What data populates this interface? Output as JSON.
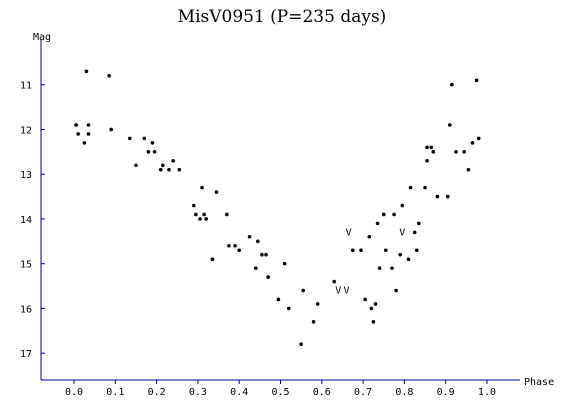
{
  "chart_data": {
    "type": "scatter",
    "title": "MisV0951 (P=235 days)",
    "xlabel": "Phase",
    "ylabel": "Mag",
    "xlim": [
      -0.08,
      1.08
    ],
    "ylim": [
      10.0,
      17.6
    ],
    "y_inverted": true,
    "grid": false,
    "axis_color": "#00008b",
    "point_color": "#000000",
    "x_ticks": [
      "0.0",
      "0.1",
      "0.2",
      "0.3",
      "0.4",
      "0.5",
      "0.6",
      "0.7",
      "0.8",
      "0.9",
      "1.0"
    ],
    "y_ticks": [
      "11",
      "12",
      "13",
      "14",
      "15",
      "16",
      "17"
    ],
    "points": [
      {
        "x": 0.005,
        "y": 11.9
      },
      {
        "x": 0.01,
        "y": 12.1
      },
      {
        "x": 0.025,
        "y": 12.3
      },
      {
        "x": 0.03,
        "y": 10.7
      },
      {
        "x": 0.035,
        "y": 12.1
      },
      {
        "x": 0.035,
        "y": 11.9
      },
      {
        "x": 0.085,
        "y": 10.8
      },
      {
        "x": 0.09,
        "y": 12.0
      },
      {
        "x": 0.135,
        "y": 12.2
      },
      {
        "x": 0.15,
        "y": 12.8
      },
      {
        "x": 0.17,
        "y": 12.2
      },
      {
        "x": 0.18,
        "y": 12.5
      },
      {
        "x": 0.19,
        "y": 12.3
      },
      {
        "x": 0.195,
        "y": 12.5
      },
      {
        "x": 0.21,
        "y": 12.9
      },
      {
        "x": 0.215,
        "y": 12.8
      },
      {
        "x": 0.23,
        "y": 12.9
      },
      {
        "x": 0.24,
        "y": 12.7
      },
      {
        "x": 0.255,
        "y": 12.9
      },
      {
        "x": 0.29,
        "y": 13.7
      },
      {
        "x": 0.295,
        "y": 13.9
      },
      {
        "x": 0.305,
        "y": 14.0
      },
      {
        "x": 0.31,
        "y": 13.3
      },
      {
        "x": 0.315,
        "y": 13.9
      },
      {
        "x": 0.32,
        "y": 14.0
      },
      {
        "x": 0.335,
        "y": 14.9
      },
      {
        "x": 0.345,
        "y": 13.4
      },
      {
        "x": 0.37,
        "y": 13.9
      },
      {
        "x": 0.375,
        "y": 14.6
      },
      {
        "x": 0.39,
        "y": 14.6
      },
      {
        "x": 0.4,
        "y": 14.7
      },
      {
        "x": 0.425,
        "y": 14.4
      },
      {
        "x": 0.44,
        "y": 15.1
      },
      {
        "x": 0.445,
        "y": 14.5
      },
      {
        "x": 0.455,
        "y": 14.8
      },
      {
        "x": 0.465,
        "y": 14.8
      },
      {
        "x": 0.47,
        "y": 15.3
      },
      {
        "x": 0.495,
        "y": 15.8
      },
      {
        "x": 0.51,
        "y": 15.0
      },
      {
        "x": 0.52,
        "y": 16.0
      },
      {
        "x": 0.55,
        "y": 16.8
      },
      {
        "x": 0.555,
        "y": 15.6
      },
      {
        "x": 0.58,
        "y": 16.3
      },
      {
        "x": 0.59,
        "y": 15.9
      },
      {
        "x": 0.63,
        "y": 15.4
      },
      {
        "x": 0.675,
        "y": 14.7
      },
      {
        "x": 0.695,
        "y": 14.7
      },
      {
        "x": 0.705,
        "y": 15.8
      },
      {
        "x": 0.715,
        "y": 14.4
      },
      {
        "x": 0.72,
        "y": 16.0
      },
      {
        "x": 0.725,
        "y": 16.3
      },
      {
        "x": 0.73,
        "y": 15.9
      },
      {
        "x": 0.735,
        "y": 14.1
      },
      {
        "x": 0.74,
        "y": 15.1
      },
      {
        "x": 0.75,
        "y": 13.9
      },
      {
        "x": 0.755,
        "y": 14.7
      },
      {
        "x": 0.77,
        "y": 15.1
      },
      {
        "x": 0.775,
        "y": 13.9
      },
      {
        "x": 0.78,
        "y": 15.6
      },
      {
        "x": 0.79,
        "y": 14.8
      },
      {
        "x": 0.795,
        "y": 13.7
      },
      {
        "x": 0.81,
        "y": 14.9
      },
      {
        "x": 0.815,
        "y": 13.3
      },
      {
        "x": 0.825,
        "y": 14.3
      },
      {
        "x": 0.83,
        "y": 14.7
      },
      {
        "x": 0.835,
        "y": 14.1
      },
      {
        "x": 0.85,
        "y": 13.3
      },
      {
        "x": 0.855,
        "y": 12.7
      },
      {
        "x": 0.855,
        "y": 12.4
      },
      {
        "x": 0.865,
        "y": 12.4
      },
      {
        "x": 0.87,
        "y": 12.5
      },
      {
        "x": 0.88,
        "y": 13.5
      },
      {
        "x": 0.905,
        "y": 13.5
      },
      {
        "x": 0.91,
        "y": 11.9
      },
      {
        "x": 0.915,
        "y": 11.0
      },
      {
        "x": 0.925,
        "y": 12.5
      },
      {
        "x": 0.945,
        "y": 12.5
      },
      {
        "x": 0.955,
        "y": 12.9
      },
      {
        "x": 0.965,
        "y": 12.3
      },
      {
        "x": 0.975,
        "y": 10.9
      },
      {
        "x": 0.98,
        "y": 12.2
      }
    ],
    "limit_marks": [
      {
        "x": 0.665,
        "y": 14.3,
        "label": "V"
      },
      {
        "x": 0.64,
        "y": 15.6,
        "label": "V"
      },
      {
        "x": 0.66,
        "y": 15.6,
        "label": "V"
      },
      {
        "x": 0.795,
        "y": 14.3,
        "label": "V"
      }
    ]
  }
}
